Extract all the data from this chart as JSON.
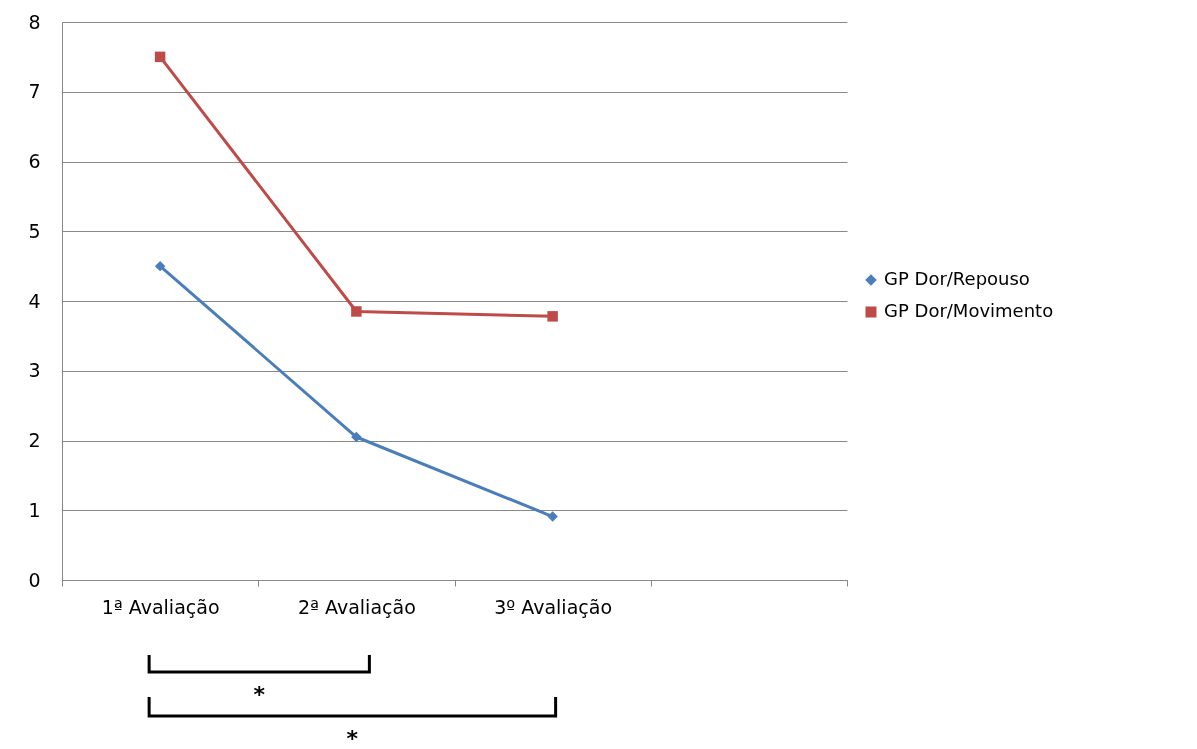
{
  "chart_data": {
    "type": "line",
    "categories": [
      "1ª Avaliação",
      "2ª Avaliação",
      "3º Avaliação",
      null
    ],
    "series": [
      {
        "name": "GP Dor/Repouso",
        "color": "#4a7ebb",
        "marker": "diamond",
        "values": [
          4.5,
          2.05,
          0.91,
          null
        ]
      },
      {
        "name": "GP Dor/Movimento",
        "color": "#be4b48",
        "marker": "square",
        "values": [
          7.5,
          3.85,
          3.78,
          null
        ]
      }
    ],
    "ylim": [
      0,
      8
    ],
    "yticks": [
      0,
      1,
      2,
      3,
      4,
      5,
      6,
      7,
      8
    ],
    "grid": "y",
    "legend": "right",
    "annotations": [
      "*",
      "*"
    ]
  }
}
